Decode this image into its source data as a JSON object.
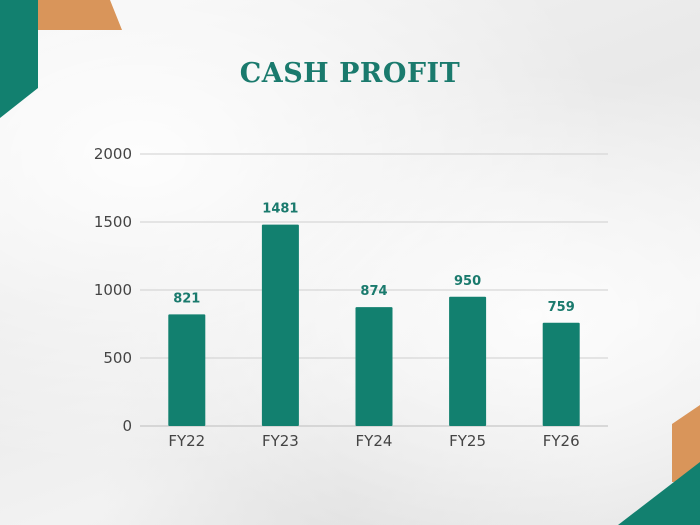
{
  "colors": {
    "bar": "#12806f",
    "accent_orange": "#d9955a",
    "accent_teal": "#12806f",
    "title": "#1a7a6d"
  },
  "chart_data": {
    "type": "bar",
    "title": "CASH PROFIT",
    "categories": [
      "FY22",
      "FY23",
      "FY24",
      "FY25",
      "FY26"
    ],
    "values": [
      821,
      1481,
      874,
      950,
      759
    ],
    "ylim": [
      0,
      2000
    ],
    "yticks": [
      0,
      500,
      1000,
      1500,
      2000
    ],
    "xlabel": "",
    "ylabel": "",
    "grid": true,
    "data_labels": true
  }
}
